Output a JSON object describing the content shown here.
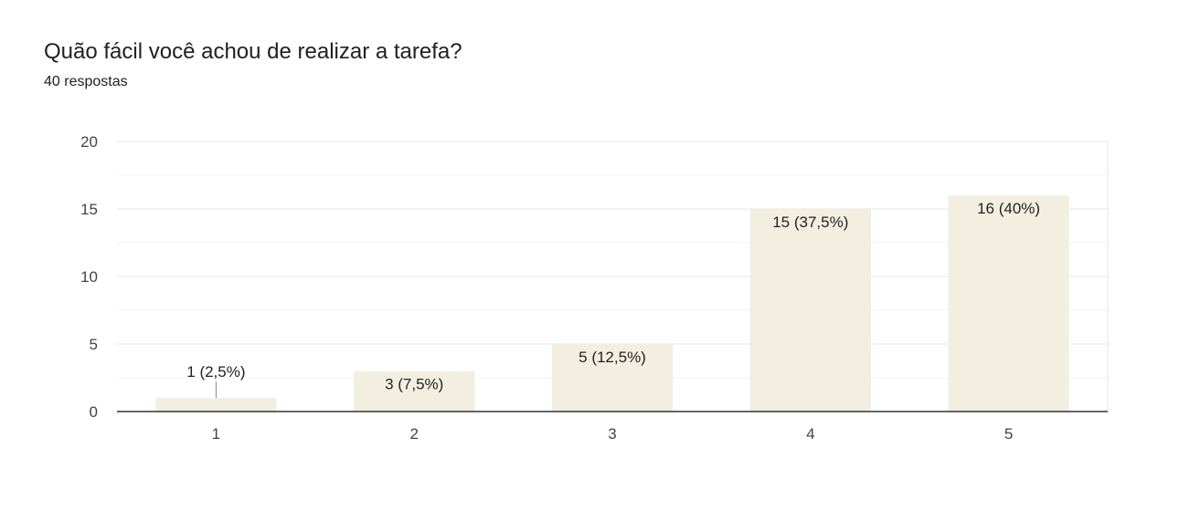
{
  "header": {
    "title": "Quão fácil você achou de realizar a tarefa?",
    "response_count": "40 respostas"
  },
  "colors": {
    "bar_fill": "#f2efe0",
    "grid_major": "#e6e6e6",
    "grid_minor": "#f3f3f3",
    "axis": "#333333",
    "leader_line": "#888888"
  },
  "chart_data": {
    "type": "bar",
    "categories": [
      "1",
      "2",
      "3",
      "4",
      "5"
    ],
    "values": [
      1,
      3,
      5,
      15,
      16
    ],
    "data_labels": [
      "1 (2,5%)",
      "3 (7,5%)",
      "5 (12,5%)",
      "15 (37,5%)",
      "16 (40%)"
    ],
    "ylim": [
      0,
      20
    ],
    "yticks": [
      "0",
      "5",
      "10",
      "15",
      "20"
    ],
    "grid": true,
    "minor_grid": true,
    "title": "",
    "xlabel": "",
    "ylabel": ""
  }
}
